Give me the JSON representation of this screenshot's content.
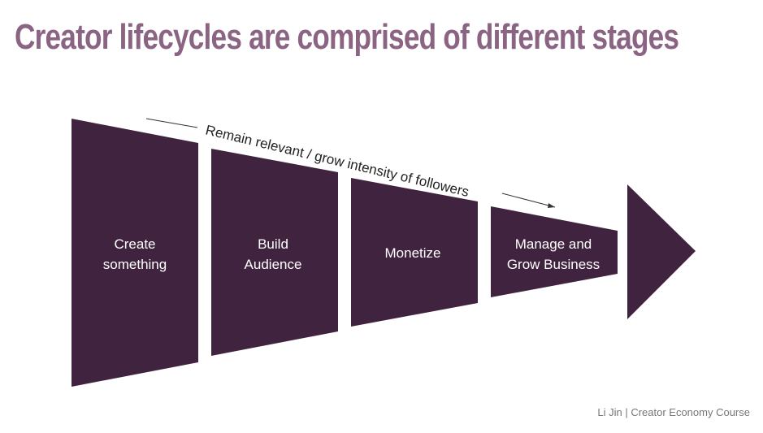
{
  "title": "Creator lifecycles are comprised of different stages",
  "arrow_caption": "Remain relevant / grow intensity of followers",
  "stages": [
    {
      "line1": "Create",
      "line2": "something"
    },
    {
      "line1": "Build",
      "line2": "Audience"
    },
    {
      "line1": "Monetize",
      "line2": ""
    },
    {
      "line1": "Manage and",
      "line2": "Grow Business"
    }
  ],
  "footer": "Li Jin | Creator Economy Course",
  "colors": {
    "title": "#8a6482",
    "stage_fill": "#40233e",
    "footer": "#777777"
  }
}
